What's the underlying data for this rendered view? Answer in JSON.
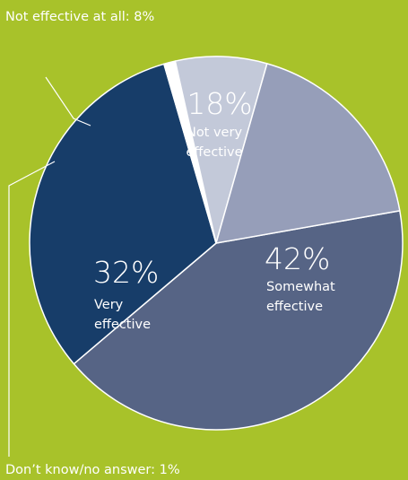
{
  "chart_data": {
    "type": "pie",
    "slices": [
      {
        "key": "somewhat",
        "pct_label": "42%",
        "label_lines": [
          "Somewhat",
          "effective"
        ],
        "value": 42,
        "color": "#566485"
      },
      {
        "key": "very",
        "pct_label": "32%",
        "label_lines": [
          "Very",
          "effective"
        ],
        "value": 32,
        "color": "#173d69"
      },
      {
        "key": "dont_know",
        "label": "Don’t know/no answer: 1%",
        "value": 1,
        "color": "#ffffff"
      },
      {
        "key": "not_at_all",
        "label": "Not effective at all: 8%",
        "value": 8,
        "color": "#c3c9d9"
      },
      {
        "key": "not_very",
        "pct_label": "18%",
        "label_lines": [
          "Not very",
          "effective"
        ],
        "value": 18,
        "color": "#969eb9"
      }
    ],
    "background_color": "#a8c22a",
    "separator_color": "#ffffff"
  }
}
